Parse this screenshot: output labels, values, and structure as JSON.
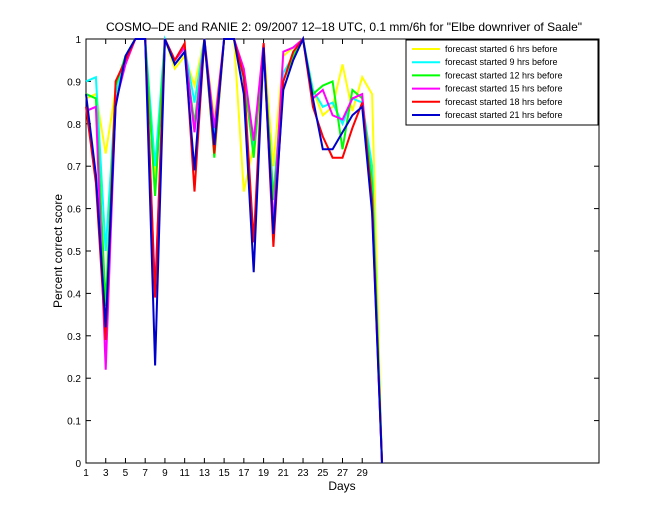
{
  "chart_data": {
    "type": "line",
    "title": "COSMO–DE and RANIE 2: 09/2007 12–18 UTC, 0.1 mm/6h for \"Elbe downriver of Saale\"",
    "xlabel": "Days",
    "ylabel": "Percent correct score",
    "xlim": [
      1,
      53
    ],
    "ylim": [
      0,
      1
    ],
    "x_ticks": [
      1,
      3,
      5,
      7,
      9,
      11,
      13,
      15,
      17,
      19,
      21,
      23,
      25,
      27,
      29
    ],
    "x_tick_labels": [
      "1",
      "3",
      "5",
      "7",
      "9",
      "11",
      "13",
      "15",
      "17",
      "19",
      "21",
      "23",
      "25",
      "27",
      "29"
    ],
    "y_ticks": [
      0,
      0.1,
      0.2,
      0.3,
      0.4,
      0.5,
      0.6,
      0.7,
      0.8,
      0.9,
      1
    ],
    "y_tick_labels": [
      "0",
      "0.1",
      "0.2",
      "0.3",
      "0.4",
      "0.5",
      "0.6",
      "0.7",
      "0.8",
      "0.9",
      "1"
    ],
    "grid": false,
    "legend_position": "top-right",
    "x": [
      1,
      2,
      3,
      4,
      5,
      6,
      7,
      8,
      9,
      10,
      11,
      12,
      13,
      14,
      15,
      16,
      17,
      18,
      19,
      20,
      21,
      22,
      23,
      24,
      25,
      26,
      27,
      28,
      29,
      30,
      31
    ],
    "series": [
      {
        "name": "forecast started 6 hrs before",
        "color": "#ffff00",
        "values": [
          0.86,
          0.87,
          0.73,
          0.88,
          0.96,
          1.0,
          1.0,
          0.66,
          1.0,
          0.93,
          0.96,
          0.89,
          1.0,
          0.81,
          1.0,
          1.0,
          0.64,
          0.75,
          0.99,
          0.7,
          0.96,
          0.98,
          1.0,
          0.88,
          0.82,
          0.84,
          0.94,
          0.83,
          0.91,
          0.87,
          0.0
        ]
      },
      {
        "name": "forecast started 9 hrs before",
        "color": "#00ffff",
        "values": [
          0.9,
          0.91,
          0.5,
          0.87,
          0.96,
          1.0,
          1.0,
          0.7,
          1.0,
          0.95,
          0.98,
          0.85,
          1.0,
          0.77,
          1.0,
          1.0,
          0.9,
          0.74,
          0.97,
          0.63,
          0.92,
          0.96,
          1.0,
          0.88,
          0.84,
          0.85,
          0.8,
          0.86,
          0.85,
          0.7,
          0.0
        ]
      },
      {
        "name": "forecast started 12 hrs before",
        "color": "#00ff00",
        "values": [
          0.87,
          0.86,
          0.37,
          0.89,
          0.96,
          1.0,
          1.0,
          0.63,
          1.0,
          0.94,
          0.97,
          0.8,
          1.0,
          0.72,
          1.0,
          1.0,
          0.92,
          0.72,
          0.98,
          0.62,
          0.9,
          0.96,
          1.0,
          0.87,
          0.89,
          0.9,
          0.74,
          0.88,
          0.86,
          0.66,
          0.0
        ]
      },
      {
        "name": "forecast started 15 hrs before",
        "color": "#ff00ff",
        "values": [
          0.83,
          0.84,
          0.22,
          0.85,
          0.94,
          1.0,
          1.0,
          0.4,
          1.0,
          0.95,
          0.98,
          0.78,
          1.0,
          0.79,
          1.0,
          1.0,
          0.93,
          0.76,
          0.99,
          0.56,
          0.97,
          0.98,
          1.0,
          0.86,
          0.88,
          0.82,
          0.81,
          0.86,
          0.87,
          0.6,
          0.0
        ]
      },
      {
        "name": "forecast started 18 hrs before",
        "color": "#ff0000",
        "values": [
          0.84,
          0.66,
          0.29,
          0.9,
          0.95,
          1.0,
          1.0,
          0.39,
          1.0,
          0.95,
          0.99,
          0.64,
          1.0,
          0.73,
          1.0,
          1.0,
          0.91,
          0.52,
          0.99,
          0.51,
          0.9,
          0.97,
          1.0,
          0.84,
          0.77,
          0.72,
          0.72,
          0.79,
          0.85,
          0.62,
          0.0
        ]
      },
      {
        "name": "forecast started 21 hrs before",
        "color": "#0000cc",
        "values": [
          0.87,
          0.68,
          0.32,
          0.84,
          0.96,
          1.0,
          1.0,
          0.23,
          1.0,
          0.94,
          0.97,
          0.69,
          1.0,
          0.75,
          1.0,
          1.0,
          0.87,
          0.45,
          0.98,
          0.54,
          0.88,
          0.95,
          1.0,
          0.86,
          0.74,
          0.74,
          0.78,
          0.82,
          0.84,
          0.59,
          0.0
        ]
      }
    ]
  }
}
